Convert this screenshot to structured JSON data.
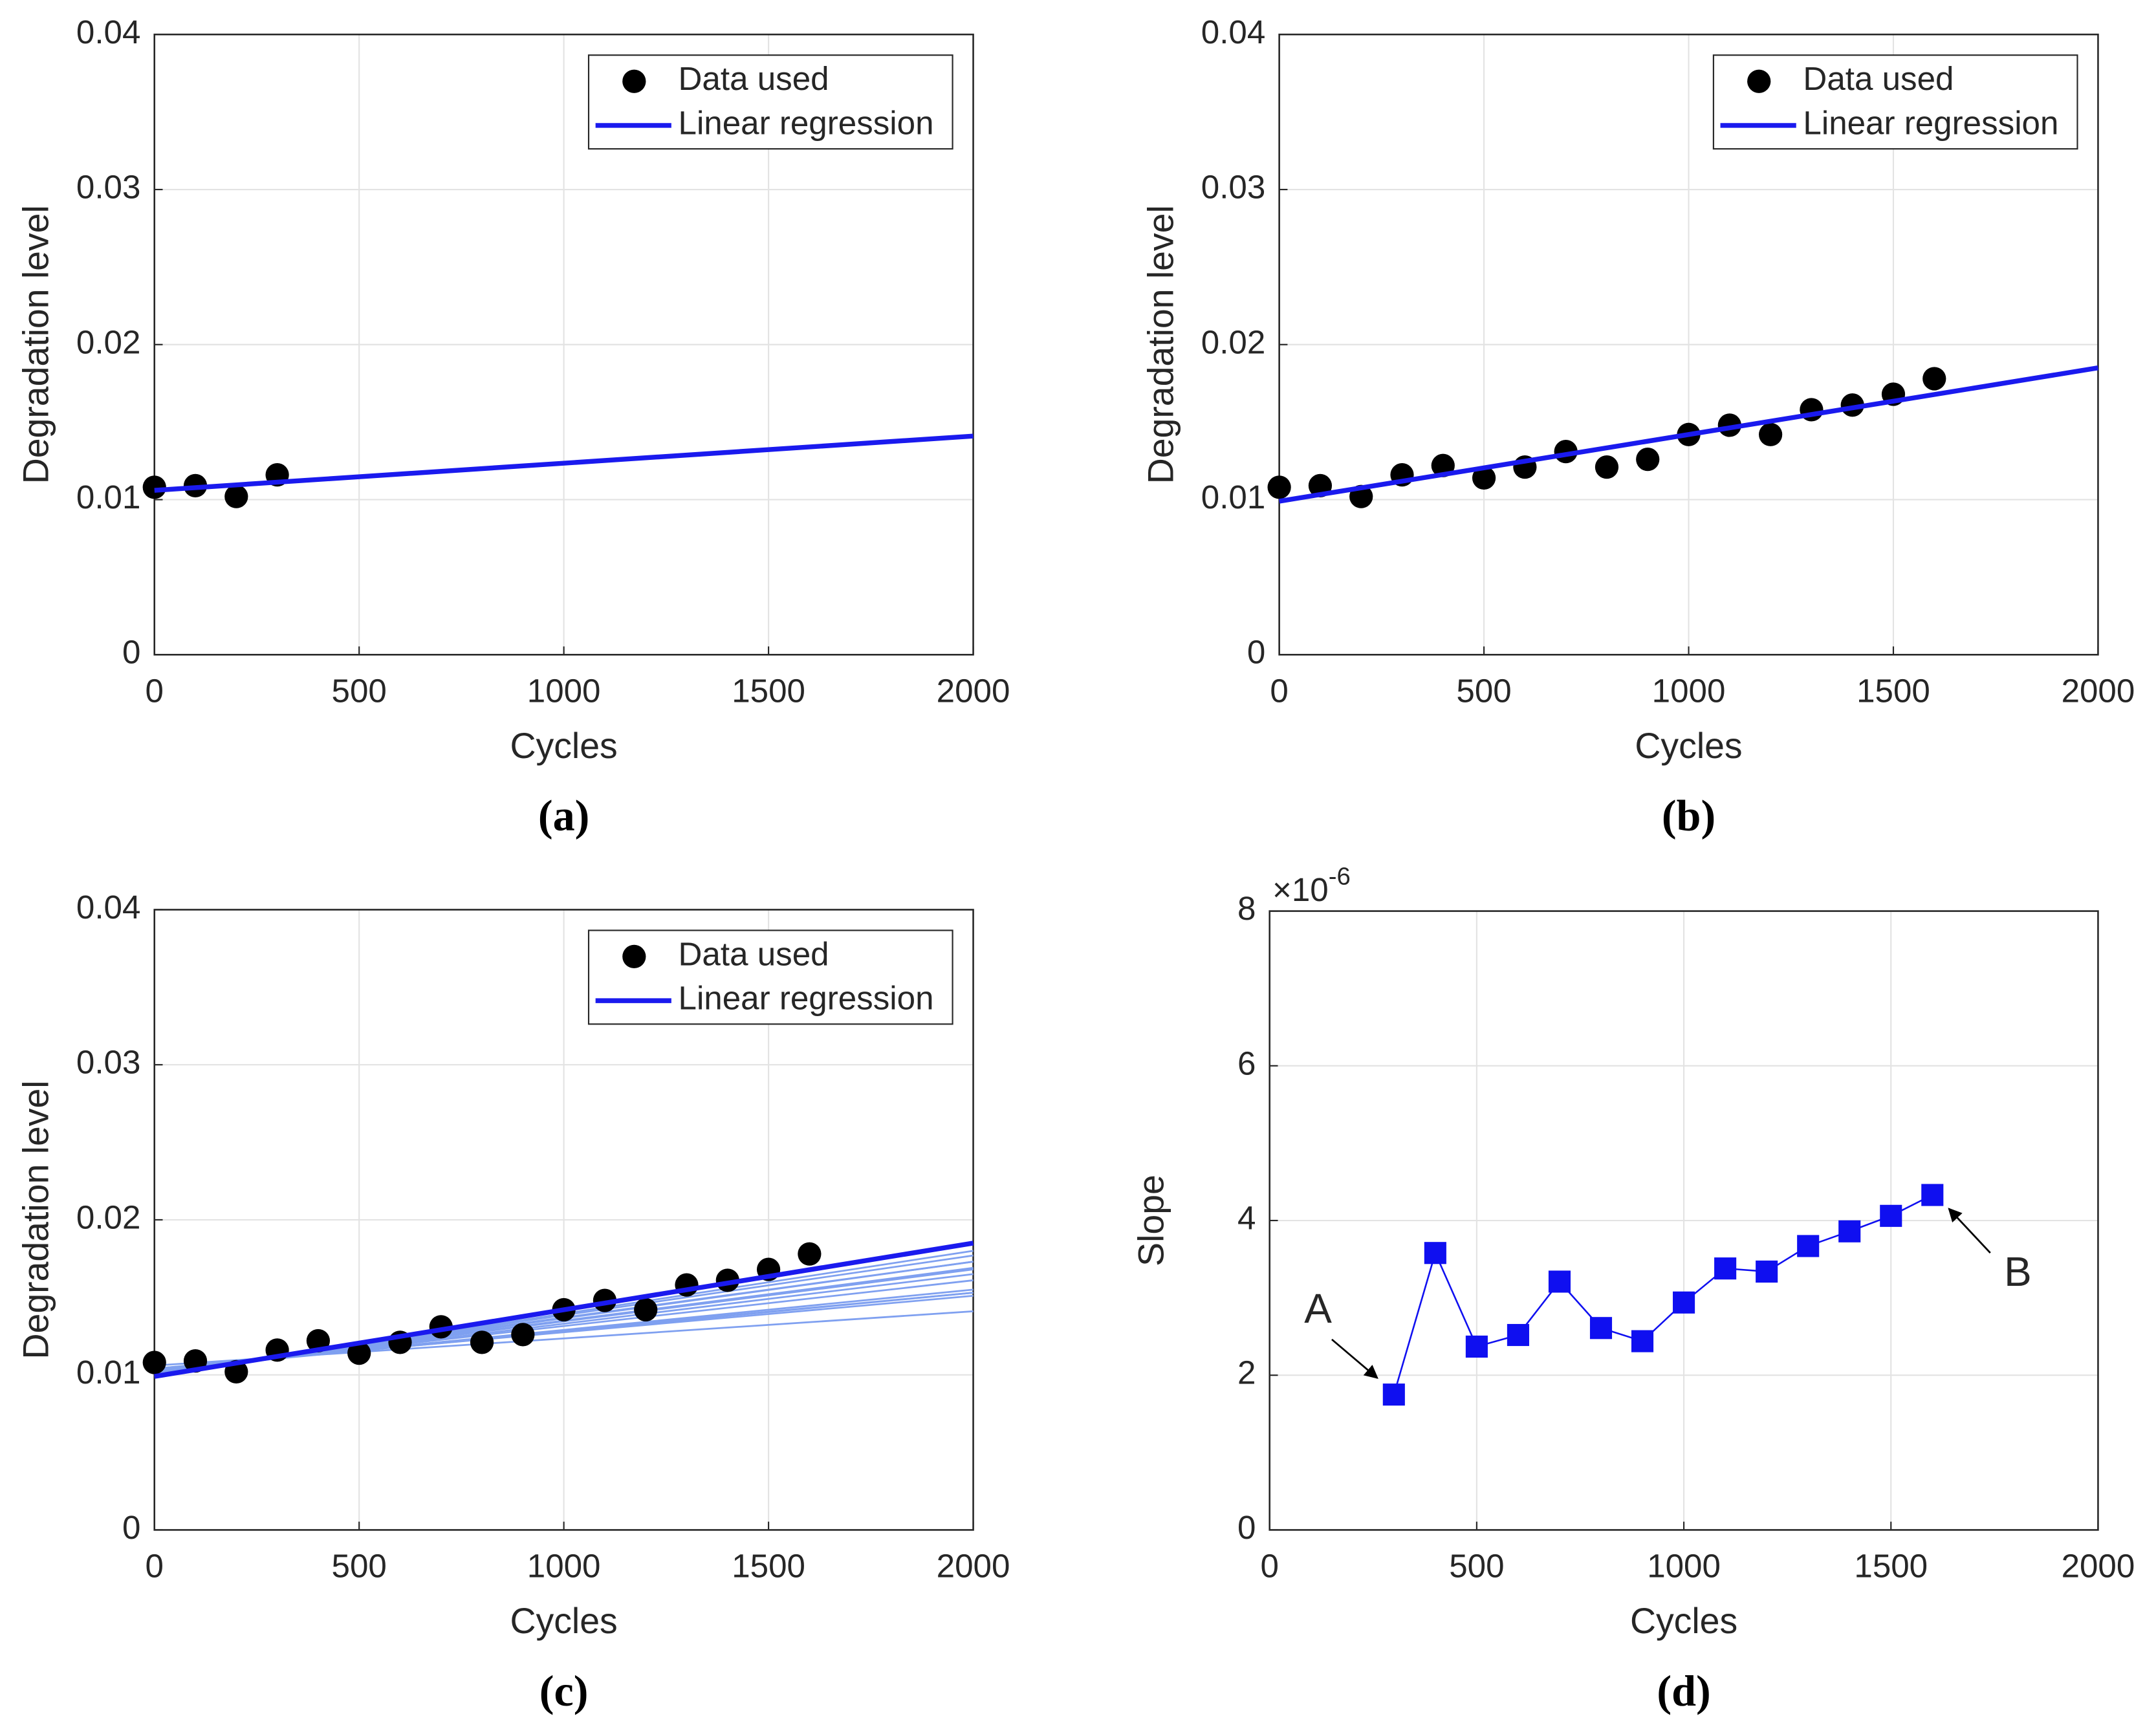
{
  "chart_data": [
    {
      "type": "scatter",
      "panel_label": "(a)",
      "xlabel": "Cycles",
      "ylabel": "Degradation level",
      "xlim": [
        0,
        2000
      ],
      "xticks": [
        0,
        500,
        1000,
        1500,
        2000
      ],
      "ylim": [
        0,
        0.04
      ],
      "yticks": [
        0,
        0.01,
        0.02,
        0.03,
        0.04
      ],
      "grid": true,
      "legend": "northeast",
      "series": [
        {
          "name": "Data used",
          "type": "scatter",
          "color": "#000000",
          "x": [
            0,
            100,
            200,
            300
          ],
          "values": [
            0.0108,
            0.0109,
            0.0102,
            0.0116
          ]
        },
        {
          "name": "Linear regression",
          "type": "line",
          "color": "#1a1aee",
          "x": [
            0,
            2000
          ],
          "values": [
            0.0106,
            0.0141
          ]
        }
      ]
    },
    {
      "type": "scatter",
      "panel_label": "(b)",
      "xlabel": "Cycles",
      "ylabel": "Degradation level",
      "xlim": [
        0,
        2000
      ],
      "xticks": [
        0,
        500,
        1000,
        1500,
        2000
      ],
      "ylim": [
        0,
        0.04
      ],
      "yticks": [
        0,
        0.01,
        0.02,
        0.03,
        0.04
      ],
      "grid": true,
      "legend": "northeast",
      "series": [
        {
          "name": "Data used",
          "type": "scatter",
          "color": "#000000",
          "x": [
            0,
            100,
            200,
            300,
            400,
            500,
            600,
            700,
            800,
            900,
            1000,
            1100,
            1200,
            1300,
            1400,
            1500,
            1600
          ],
          "values": [
            0.0108,
            0.0109,
            0.0102,
            0.0116,
            0.0122,
            0.0114,
            0.0121,
            0.0131,
            0.0121,
            0.0126,
            0.0142,
            0.0148,
            0.0142,
            0.0158,
            0.0161,
            0.0168,
            0.0178
          ]
        },
        {
          "name": "Linear regression",
          "type": "line",
          "color": "#1a1aee",
          "x": [
            0,
            2000
          ],
          "values": [
            0.0099,
            0.0185
          ]
        }
      ]
    },
    {
      "type": "scatter",
      "panel_label": "(c)",
      "xlabel": "Cycles",
      "ylabel": "Degradation level",
      "xlim": [
        0,
        2000
      ],
      "xticks": [
        0,
        500,
        1000,
        1500,
        2000
      ],
      "ylim": [
        0,
        0.04
      ],
      "yticks": [
        0,
        0.01,
        0.02,
        0.03,
        0.04
      ],
      "grid": true,
      "legend": "northeast",
      "series": [
        {
          "name": "Data used",
          "type": "scatter",
          "color": "#000000",
          "x": [
            0,
            100,
            200,
            300,
            400,
            500,
            600,
            700,
            800,
            900,
            1000,
            1100,
            1200,
            1300,
            1400,
            1500,
            1600
          ],
          "values": [
            0.0108,
            0.0109,
            0.0102,
            0.0116,
            0.0122,
            0.0114,
            0.0121,
            0.0131,
            0.0121,
            0.0126,
            0.0142,
            0.0148,
            0.0142,
            0.0158,
            0.0161,
            0.0168,
            0.0178
          ]
        },
        {
          "name": "Linear regression",
          "type": "line",
          "color": "#1a1aee",
          "x": [
            0,
            2000
          ],
          "values": [
            0.0099,
            0.0185
          ]
        }
      ],
      "earlier_fits": {
        "color": "#7fa0f0",
        "x": [
          0,
          2000
        ],
        "values": [
          [
            0.0106,
            0.0141
          ],
          [
            0.0101,
            0.0173
          ],
          [
            0.0104,
            0.0151
          ],
          [
            0.0103,
            0.0153
          ],
          [
            0.0101,
            0.0165
          ],
          [
            0.0103,
            0.0155
          ],
          [
            0.0104,
            0.0153
          ],
          [
            0.0102,
            0.0161
          ],
          [
            0.0101,
            0.0169
          ],
          [
            0.0101,
            0.0168
          ],
          [
            0.01,
            0.0173
          ],
          [
            0.01,
            0.0177
          ],
          [
            0.0099,
            0.018
          ]
        ]
      }
    },
    {
      "type": "line_markers",
      "panel_label": "(d)",
      "xlabel": "Cycles",
      "ylabel": "Slope",
      "xlim": [
        0,
        2000
      ],
      "xticks": [
        0,
        500,
        1000,
        1500,
        2000
      ],
      "ylim": [
        0,
        8
      ],
      "yticks": [
        0,
        2,
        4,
        6,
        8
      ],
      "grid": true,
      "y_scale_base": "×10",
      "y_scale_exponent": "-6",
      "series": [
        {
          "type": "line_markers",
          "color": "#0f0ff0",
          "x": [
            300,
            400,
            500,
            600,
            700,
            800,
            900,
            1000,
            1100,
            1200,
            1300,
            1400,
            1500,
            1600
          ],
          "values": [
            1.75,
            3.58,
            2.37,
            2.52,
            3.21,
            2.61,
            2.44,
            2.94,
            3.38,
            3.34,
            3.67,
            3.86,
            4.06,
            4.33
          ]
        }
      ],
      "annotations": [
        "A",
        "B"
      ]
    }
  ]
}
